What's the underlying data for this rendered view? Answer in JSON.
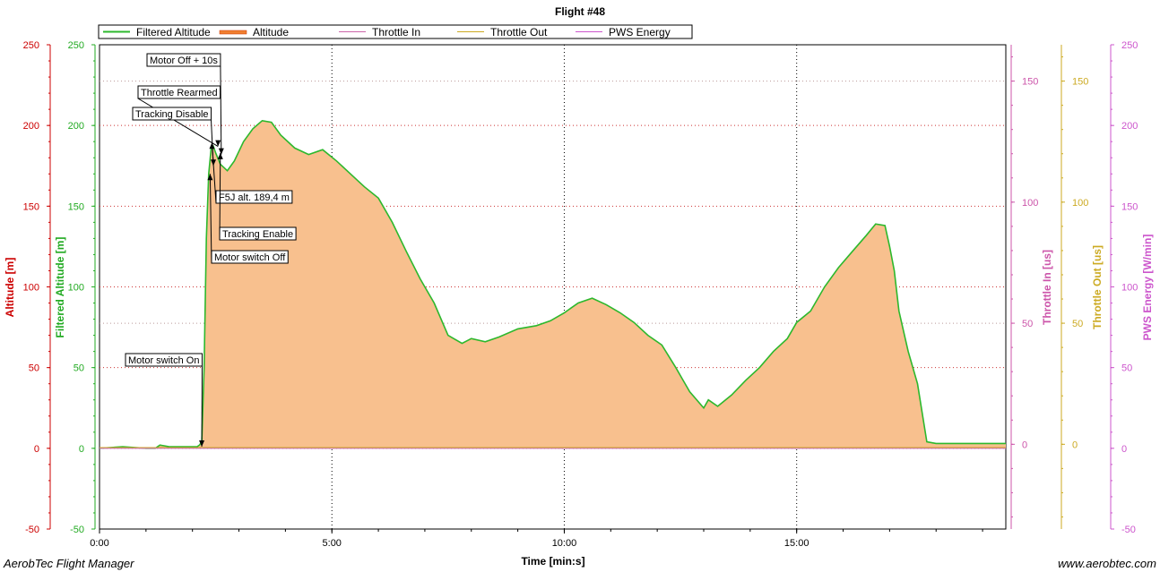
{
  "chart_data": {
    "type": "area",
    "title": "Flight #48",
    "xlabel": "Time [min:s]",
    "x_ticks": [
      "0:00",
      "5:00",
      "10:00",
      "15:00"
    ],
    "x_tick_values_min": [
      0,
      5,
      10,
      15
    ],
    "xlim_min": [
      0,
      19.5
    ],
    "legend": [
      {
        "name": "Filtered Altitude",
        "color": "#2db82d"
      },
      {
        "name": "Altitude",
        "color": "#f0a000"
      },
      {
        "name": "Throttle In",
        "color": "#cc66aa"
      },
      {
        "name": "Throttle Out",
        "color": "#ccaa22"
      },
      {
        "name": "PWS Energy",
        "color": "#cc55cc"
      }
    ],
    "axes": [
      {
        "label": "Altitude [m]",
        "color": "#cc0000",
        "range": [
          -50,
          250
        ],
        "ticks": [
          "250",
          "200",
          "150",
          "100",
          "50",
          "0",
          "-50"
        ]
      },
      {
        "label": "Filtered Altitude [m]",
        "color": "#22aa22",
        "range": [
          -50,
          250
        ],
        "ticks": [
          "250",
          "200",
          "150",
          "100",
          "50",
          "0",
          "-50"
        ]
      },
      {
        "label": "Throttle In [us]",
        "color": "#cc55aa",
        "range": [
          -35,
          165
        ],
        "ticks": [
          "150",
          "100",
          "50",
          "0"
        ]
      },
      {
        "label": "Throttle Out [us]",
        "color": "#ccaa22",
        "range": [
          -35,
          165
        ],
        "ticks": [
          "150",
          "100",
          "50",
          "0"
        ]
      },
      {
        "label": "PWS Energy [W/min]",
        "color": "#cc55cc",
        "range": [
          -50,
          250
        ],
        "ticks": [
          "250",
          "200",
          "150",
          "100",
          "50",
          "0",
          "-50"
        ]
      }
    ],
    "series": [
      {
        "name": "Filtered Altitude",
        "x_min": [
          0,
          0.5,
          1.0,
          1.2,
          1.3,
          1.5,
          1.8,
          2.0,
          2.1,
          2.15,
          2.2,
          2.25,
          2.3,
          2.35,
          2.4,
          2.45,
          2.5,
          2.6,
          2.75,
          2.9,
          3.1,
          3.3,
          3.5,
          3.7,
          3.9,
          4.2,
          4.5,
          4.8,
          5.1,
          5.4,
          5.7,
          6.0,
          6.3,
          6.6,
          6.9,
          7.2,
          7.5,
          7.8,
          8.0,
          8.3,
          8.6,
          9.0,
          9.4,
          9.7,
          10.0,
          10.3,
          10.6,
          10.9,
          11.2,
          11.5,
          11.8,
          12.1,
          12.4,
          12.7,
          13.0,
          13.1,
          13.3,
          13.6,
          13.9,
          14.2,
          14.5,
          14.8,
          15.0,
          15.3,
          15.6,
          15.9,
          16.2,
          16.5,
          16.7,
          16.9,
          17.0,
          17.1,
          17.2,
          17.4,
          17.6,
          17.8,
          18.0,
          18.5,
          19.0,
          19.5
        ],
        "y_m": [
          0,
          1,
          0,
          0,
          2,
          1,
          1,
          1,
          1,
          2,
          4,
          50,
          130,
          170,
          185,
          187,
          183,
          176,
          172,
          178,
          190,
          198,
          203,
          202,
          194,
          186,
          182,
          185,
          178,
          170,
          162,
          155,
          140,
          122,
          105,
          90,
          70,
          65,
          68,
          66,
          69,
          74,
          76,
          79,
          84,
          90,
          93,
          89,
          84,
          78,
          70,
          64,
          50,
          35,
          25,
          30,
          26,
          33,
          42,
          50,
          60,
          68,
          78,
          85,
          100,
          112,
          122,
          132,
          139,
          138,
          125,
          110,
          85,
          60,
          40,
          4,
          3,
          3,
          3,
          3
        ]
      },
      {
        "name": "Throttle Out",
        "y_us_constant": -1
      }
    ],
    "annotations": [
      {
        "label": "Motor Off + 10s",
        "x_min": 2.62,
        "y_m": 182
      },
      {
        "label": "Throttle Rearmed",
        "x_min": 2.55,
        "y_m": 187
      },
      {
        "label": "Tracking Disable",
        "x_min": 2.45,
        "y_m": 175
      },
      {
        "label": "F5J alt. 189,4 m",
        "x_min": 2.42,
        "y_m": 189.4
      },
      {
        "label": "Tracking Enable",
        "x_min": 2.6,
        "y_m": 183
      },
      {
        "label": "Motor switch Off",
        "x_min": 2.38,
        "y_m": 170
      },
      {
        "label": "Motor switch On",
        "x_min": 2.2,
        "y_m": 1
      }
    ],
    "grid": true,
    "legend_position": "top"
  },
  "footer": {
    "app_name": "AerobTec Flight Manager",
    "website": "www.aerobtec.com"
  }
}
